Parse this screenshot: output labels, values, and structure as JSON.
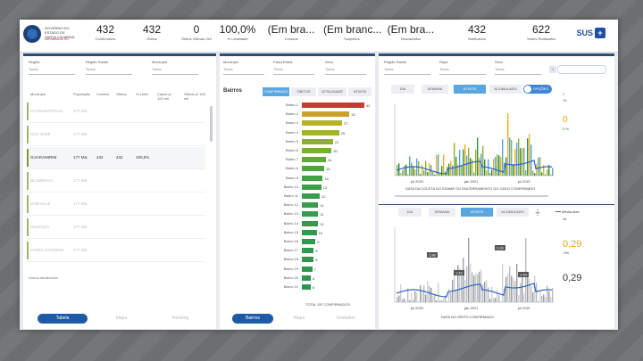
{
  "header": {
    "org_name": "GOVERNO DO ESTADO DE SANTA CATARINA",
    "org_sub": "coronavirus SC",
    "kpis": [
      {
        "value": "432",
        "label": "Confirmados"
      },
      {
        "value": "432",
        "label": "Óbitos"
      },
      {
        "value": "0",
        "label": "Óbitos Últimas 24h"
      },
      {
        "value": "100,0%",
        "label": "% Letalidade"
      },
      {
        "value": "(Em bra...",
        "label": "Curados"
      },
      {
        "value": "(Em branc...",
        "label": "Suspeitos"
      },
      {
        "value": "(Em bra...",
        "label": "Descartados"
      },
      {
        "value": "432",
        "label": "Notificados"
      },
      {
        "value": "622",
        "label": "Testes Realizados"
      }
    ],
    "brand": "SUS"
  },
  "left_panel": {
    "filters": [
      {
        "label": "Região",
        "value": "Todos"
      },
      {
        "label": "Região Saúde",
        "value": "Todos"
      },
      {
        "label": "Município",
        "value": "Todos"
      }
    ],
    "columns": [
      "Município",
      "População",
      "Confirm.",
      "Óbitos",
      "% Letal.",
      "Casos p/ 100 mil",
      "Óbitos p/ 100 mil"
    ],
    "rows": [
      [
        "FLORIANÓPOLIS",
        "177 MIL",
        "",
        "",
        "",
        "",
        ""
      ],
      [
        "SÃO JOSÉ",
        "177 MIL",
        "",
        "",
        "",
        "",
        ""
      ],
      [
        "GUARAMIRIM",
        "177 MIL",
        "432",
        "432",
        "100,0%",
        "",
        ""
      ],
      [
        "BLUMENAU",
        "177 MIL",
        "",
        "",
        "",
        "",
        ""
      ],
      [
        "JOINVILLE",
        "177 MIL",
        "",
        "",
        "",
        "",
        ""
      ],
      [
        "PALHOÇA",
        "177 MIL",
        "",
        "",
        "",
        "",
        ""
      ],
      [
        "SANTA CATARINA",
        "177 MIL",
        "",
        "",
        "",
        "",
        ""
      ]
    ],
    "footnote": "Dados atualizados",
    "bottom_tabs": [
      "Tabela",
      "Mapa",
      "Ranking"
    ]
  },
  "middle_panel": {
    "filters": [
      {
        "label": "Município",
        "value": "Todos"
      },
      {
        "label": "Faixa Etária",
        "value": "Todos"
      },
      {
        "label": "Sexo",
        "value": "Todos"
      }
    ],
    "title": "Bairros",
    "tabs": [
      "CONFIRMADO",
      "ÓBITOS",
      "LETALIDADE",
      "ATIVOS"
    ],
    "axis_label": "TOTAL DE CONFIRMADOS",
    "bottom_tabs": [
      "Bairros",
      "Mapa",
      "Unidades"
    ],
    "chart_data": {
      "type": "bar",
      "orientation": "horizontal",
      "categories": [
        "Bairro 1",
        "Bairro 2",
        "Bairro 3",
        "Bairro 4",
        "Bairro 5",
        "Bairro 6",
        "Bairro 7",
        "Bairro 8",
        "Bairro 9",
        "Bairro 10",
        "Bairro 11",
        "Bairro 12",
        "Bairro 13",
        "Bairro 14",
        "Bairro 15",
        "Bairro 16",
        "Bairro 17",
        "Bairro 18",
        "Bairro 19",
        "Bairro 20",
        "Bairro 21"
      ],
      "values": [
        42,
        32,
        27,
        25,
        21,
        20,
        16,
        15,
        14,
        13,
        12,
        11,
        11,
        11,
        10,
        9,
        8,
        8,
        7,
        6,
        6
      ],
      "colors": [
        "#c83a32",
        "#c9a12c",
        "#b7b22c",
        "#a3b22c",
        "#8fb02f",
        "#7aae34",
        "#63a93a",
        "#4ea63f",
        "#43a244",
        "#3c9f48",
        "#379c4b",
        "#379c4b",
        "#379c4b",
        "#349a4d",
        "#349a4d",
        "#31984f",
        "#31984f",
        "#2f9650",
        "#2f9650",
        "#2e9552",
        "#2e9552"
      ]
    }
  },
  "right_panel": {
    "filters": [
      {
        "label": "Região Saúde",
        "value": "Todos"
      },
      {
        "label": "Raça",
        "value": "Todos"
      },
      {
        "label": "Sexo",
        "value": "Todos"
      }
    ],
    "top_tabs": [
      "DIA",
      "SEMANA",
      "ATIVOS",
      "ACUMULADO"
    ],
    "toggle_label": "OPÇÕES",
    "top_xlabel": "DATA DA COLETA DO EXAME OU ENCERRAMENTO DO CASO CONFIRMADO",
    "top_side": {
      "val1": "7",
      "val2": "13",
      "big": "0",
      "pct": "0 %"
    },
    "bottom_tabs": [
      "DIA",
      "SEMANA",
      "ATIVOS",
      "ACUMULADO"
    ],
    "bottom_legend": "Média dias",
    "bottom_xlabel": "DATA DO ÓBITO CONFIRMADO",
    "bottom_side": {
      "val": "14",
      "big1": "0,29",
      "pct": "-0%",
      "big2": "0,29"
    },
    "top_x_ticks": [
      "jul 2020",
      "jan 2021",
      "jul 2021"
    ],
    "bottom_x_ticks": [
      "jul 2020",
      "jan 2021",
      "jul 2021"
    ],
    "bottom_peaks": [
      "1,86",
      "1,43",
      "2,00",
      "1,43"
    ]
  }
}
